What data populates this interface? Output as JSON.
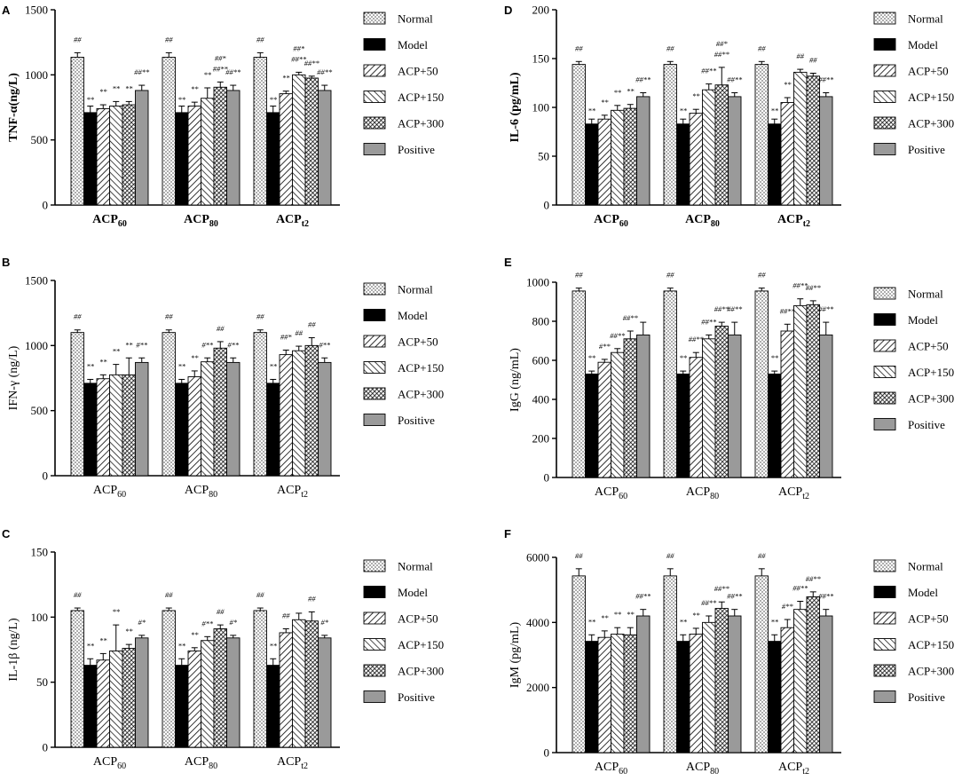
{
  "figure": {
    "series_styles": [
      {
        "name": "Normal",
        "pattern": "dots"
      },
      {
        "name": "Model",
        "pattern": "solid-black"
      },
      {
        "name": "ACP+50",
        "pattern": "diag-right"
      },
      {
        "name": "ACP+150",
        "pattern": "diag-left"
      },
      {
        "name": "ACP+300",
        "pattern": "diag-dense"
      },
      {
        "name": "Positive",
        "pattern": "solid-gray"
      }
    ],
    "colors": {
      "axis": "#000000",
      "model": "#000000",
      "positive": "#9a9a9a",
      "bar_stroke": "#000000"
    }
  },
  "chart_data": [
    {
      "id": "A",
      "panel_letter": "A",
      "type": "bar",
      "ylabel": "TNF-α(ng/L)",
      "ylabel_bold": true,
      "ylim": [
        0,
        1500
      ],
      "yticks": [
        "0",
        "500",
        "1000",
        "1500"
      ],
      "categories": [
        "ACP60",
        "ACP80",
        "ACPt2"
      ],
      "category_labels": [
        {
          "main": "ACP",
          "sub": "60"
        },
        {
          "main": "ACP",
          "sub": "80"
        },
        {
          "main": "ACP",
          "sub": "t2"
        }
      ],
      "category_bold": true,
      "legend": [
        "Normal",
        "Model",
        "ACP+50",
        "ACP+150",
        "ACP+300",
        "Positive"
      ],
      "series": [
        {
          "name": "Normal",
          "values": [
            1135,
            1135,
            1135
          ],
          "errors": [
            35,
            35,
            35
          ],
          "labels": [
            "##",
            "##",
            "##"
          ]
        },
        {
          "name": "Model",
          "values": [
            710,
            710,
            710
          ],
          "errors": [
            50,
            50,
            50
          ],
          "labels": [
            "",
            "",
            ""
          ]
        },
        {
          "name": "ACP+50",
          "values": [
            740,
            760,
            855
          ],
          "errors": [
            30,
            30,
            20
          ],
          "labels": [
            "**",
            "**",
            "**"
          ]
        },
        {
          "name": "ACP+150",
          "values": [
            760,
            820,
            1000
          ],
          "errors": [
            35,
            80,
            20
          ],
          "labels": [
            "**",
            "**",
            "##**"
          ]
        },
        {
          "name": "ACP+300",
          "values": [
            770,
            905,
            975
          ],
          "errors": [
            25,
            40,
            15
          ],
          "labels": [
            "**",
            "##**",
            "##**"
          ]
        },
        {
          "name": "Positive",
          "values": [
            880,
            880,
            880
          ],
          "errors": [
            40,
            40,
            40
          ],
          "labels": [
            "##**",
            "##**",
            "##**"
          ]
        }
      ],
      "extra_labels": [
        {
          "category": 0,
          "series": 1,
          "text": "**"
        },
        {
          "category": 1,
          "series": 1,
          "text": "**"
        },
        {
          "category": 2,
          "series": 1,
          "text": "**"
        },
        {
          "category": 1,
          "series": 4,
          "text": "##*",
          "level": 2
        },
        {
          "category": 2,
          "series": 3,
          "text": "##*",
          "level": 2
        }
      ]
    },
    {
      "id": "B",
      "panel_letter": "B",
      "type": "bar",
      "ylabel": "IFN-γ (ng/L)",
      "ylabel_bold": false,
      "ylim": [
        0,
        1500
      ],
      "yticks": [
        "0",
        "500",
        "1000",
        "1500"
      ],
      "categories": [
        "ACP60",
        "ACP80",
        "ACPt2"
      ],
      "category_labels": [
        {
          "main": "ACP",
          "sub": "60"
        },
        {
          "main": "ACP",
          "sub": "80"
        },
        {
          "main": "ACP",
          "sub": "t2"
        }
      ],
      "category_bold": false,
      "legend": [
        "Normal",
        "Model",
        "ACP+50",
        "ACP+150",
        "ACP+300",
        "Positive"
      ],
      "series": [
        {
          "name": "Normal",
          "values": [
            1100,
            1100,
            1100
          ],
          "errors": [
            20,
            20,
            20
          ],
          "labels": [
            "##",
            "##",
            "##"
          ]
        },
        {
          "name": "Model",
          "values": [
            710,
            710,
            710
          ],
          "errors": [
            30,
            30,
            30
          ],
          "labels": [
            "**",
            "**",
            "**"
          ]
        },
        {
          "name": "ACP+50",
          "values": [
            745,
            760,
            930
          ],
          "errors": [
            30,
            45,
            35
          ],
          "labels": [
            "**",
            "**",
            "##*"
          ]
        },
        {
          "name": "ACP+150",
          "values": [
            775,
            875,
            960
          ],
          "errors": [
            80,
            30,
            35
          ],
          "labels": [
            "**",
            "#**",
            "##"
          ]
        },
        {
          "name": "ACP+300",
          "values": [
            775,
            980,
            1000
          ],
          "errors": [
            130,
            50,
            60
          ],
          "labels": [
            "**",
            "##",
            "##"
          ]
        },
        {
          "name": "Positive",
          "values": [
            870,
            870,
            870
          ],
          "errors": [
            35,
            35,
            35
          ],
          "labels": [
            "#**",
            "#**",
            "#**"
          ]
        }
      ],
      "extra_labels": []
    },
    {
      "id": "C",
      "panel_letter": "C",
      "type": "bar",
      "ylabel": "IL-1β (ng/L)",
      "ylabel_bold": false,
      "ylim": [
        0,
        150
      ],
      "yticks": [
        "0",
        "50",
        "100",
        "150"
      ],
      "categories": [
        "ACP60",
        "ACP80",
        "ACPt2"
      ],
      "category_labels": [
        {
          "main": "ACP",
          "sub": "60"
        },
        {
          "main": "ACP",
          "sub": "80"
        },
        {
          "main": "ACP",
          "sub": "t2"
        }
      ],
      "category_bold": false,
      "legend": [
        "Normal",
        "Model",
        "ACP+50",
        "ACP+150",
        "ACP+300",
        "Positive"
      ],
      "series": [
        {
          "name": "Normal",
          "values": [
            105,
            105,
            105
          ],
          "errors": [
            2,
            2,
            2
          ],
          "labels": [
            "##",
            "##",
            "##"
          ]
        },
        {
          "name": "Model",
          "values": [
            63,
            63,
            63
          ],
          "errors": [
            5,
            5,
            5
          ],
          "labels": [
            "**",
            "**",
            "**"
          ]
        },
        {
          "name": "ACP+50",
          "values": [
            67,
            74,
            88
          ],
          "errors": [
            5,
            2.5,
            3
          ],
          "labels": [
            "**",
            "**",
            "##"
          ]
        },
        {
          "name": "ACP+150",
          "values": [
            74,
            82,
            98
          ],
          "errors": [
            20,
            3,
            5
          ],
          "labels": [
            "**",
            "#**",
            ""
          ]
        },
        {
          "name": "ACP+300",
          "values": [
            76,
            91,
            97
          ],
          "errors": [
            3,
            3,
            7
          ],
          "labels": [
            "**",
            "##",
            "##"
          ]
        },
        {
          "name": "Positive",
          "values": [
            84,
            84,
            84
          ],
          "errors": [
            2,
            2,
            2
          ],
          "labels": [
            "#*",
            "#*",
            "#*"
          ]
        }
      ],
      "extra_labels": []
    },
    {
      "id": "D",
      "panel_letter": "D",
      "type": "bar",
      "ylabel": "IL-6 (pg/mL)",
      "ylabel_bold": true,
      "ylim": [
        0,
        200
      ],
      "yticks": [
        "0",
        "50",
        "100",
        "150",
        "200"
      ],
      "categories": [
        "ACP60",
        "ACP80",
        "ACPt2"
      ],
      "category_labels": [
        {
          "main": "ACP",
          "sub": "60"
        },
        {
          "main": "ACP",
          "sub": "80"
        },
        {
          "main": "ACP",
          "sub": "t2"
        }
      ],
      "category_bold": true,
      "legend": [
        "Normal",
        "Model",
        "ACP+50",
        "ACP+150",
        "ACP+300",
        "Positive"
      ],
      "series": [
        {
          "name": "Normal",
          "values": [
            144,
            144,
            144
          ],
          "errors": [
            3,
            3,
            3
          ],
          "labels": [
            "##",
            "##",
            "##"
          ]
        },
        {
          "name": "Model",
          "values": [
            83,
            83,
            83
          ],
          "errors": [
            5,
            5,
            5
          ],
          "labels": [
            "",
            "",
            ""
          ]
        },
        {
          "name": "ACP+50",
          "values": [
            88,
            94,
            105
          ],
          "errors": [
            4,
            4,
            5
          ],
          "labels": [
            "**",
            "**",
            "**"
          ]
        },
        {
          "name": "ACP+150",
          "values": [
            97,
            118,
            136
          ],
          "errors": [
            5,
            6,
            3
          ],
          "labels": [
            "**",
            "##**",
            "##"
          ]
        },
        {
          "name": "ACP+300",
          "values": [
            99,
            123,
            132
          ],
          "errors": [
            4,
            18,
            3
          ],
          "labels": [
            "**",
            "##**",
            "##"
          ]
        },
        {
          "name": "Positive",
          "values": [
            111,
            111,
            111
          ],
          "errors": [
            4,
            4,
            4
          ],
          "labels": [
            "##**",
            "##**",
            "##**"
          ]
        }
      ],
      "extra_labels": [
        {
          "category": 0,
          "series": 1,
          "text": "**"
        },
        {
          "category": 1,
          "series": 1,
          "text": "**"
        },
        {
          "category": 2,
          "series": 1,
          "text": "**"
        },
        {
          "category": 1,
          "series": 4,
          "text": "##*",
          "level": 2
        }
      ]
    },
    {
      "id": "E",
      "panel_letter": "E",
      "type": "bar",
      "ylabel": "IgG (ng/mL)",
      "ylabel_bold": false,
      "ylim": [
        0,
        1000
      ],
      "yticks": [
        "0",
        "200",
        "400",
        "600",
        "800",
        "1000"
      ],
      "categories": [
        "ACP60",
        "ACP80",
        "ACPt2"
      ],
      "category_labels": [
        {
          "main": "ACP",
          "sub": "60"
        },
        {
          "main": "ACP",
          "sub": "80"
        },
        {
          "main": "ACP",
          "sub": "t2"
        }
      ],
      "category_bold": false,
      "legend": [
        "Normal",
        "Model",
        "ACP+50",
        "ACP+150",
        "ACP+300",
        "Positive"
      ],
      "series": [
        {
          "name": "Normal",
          "values": [
            955,
            955,
            955
          ],
          "errors": [
            15,
            15,
            15
          ],
          "labels": [
            "##",
            "##",
            "##"
          ]
        },
        {
          "name": "Model",
          "values": [
            530,
            530,
            530
          ],
          "errors": [
            15,
            15,
            15
          ],
          "labels": [
            "**",
            "**",
            "**"
          ]
        },
        {
          "name": "ACP+50",
          "values": [
            590,
            615,
            750
          ],
          "errors": [
            15,
            25,
            35
          ],
          "labels": [
            "#**",
            "##**",
            "##**"
          ]
        },
        {
          "name": "ACP+150",
          "values": [
            640,
            710,
            880
          ],
          "errors": [
            20,
            20,
            35
          ],
          "labels": [
            "##**",
            "##**",
            "##**"
          ]
        },
        {
          "name": "ACP+300",
          "values": [
            710,
            775,
            885
          ],
          "errors": [
            40,
            20,
            20
          ],
          "labels": [
            "##**",
            "##**",
            "##**"
          ]
        },
        {
          "name": "Positive",
          "values": [
            730,
            730,
            730
          ],
          "errors": [
            65,
            65,
            65
          ],
          "labels": [
            "",
            "##**",
            "##**"
          ]
        }
      ],
      "extra_labels": []
    },
    {
      "id": "F",
      "panel_letter": "F",
      "type": "bar",
      "ylabel": "IgM (pg/mL)",
      "ylabel_bold": false,
      "ylim": [
        0,
        6000
      ],
      "yticks": [
        "0",
        "2000",
        "4000",
        "6000"
      ],
      "categories": [
        "ACP60",
        "ACP80",
        "ACPt2"
      ],
      "category_labels": [
        {
          "main": "ACP",
          "sub": "60"
        },
        {
          "main": "ACP",
          "sub": "80"
        },
        {
          "main": "ACP",
          "sub": "t2"
        }
      ],
      "category_bold": false,
      "legend": [
        "Normal",
        "Model",
        "ACP+50",
        "ACP+150",
        "ACP+300",
        "Positive"
      ],
      "series": [
        {
          "name": "Normal",
          "values": [
            5430,
            5430,
            5430
          ],
          "errors": [
            220,
            220,
            220
          ],
          "labels": [
            "##",
            "##",
            "##"
          ]
        },
        {
          "name": "Model",
          "values": [
            3420,
            3420,
            3420
          ],
          "errors": [
            200,
            200,
            200
          ],
          "labels": [
            "**",
            "**",
            "**"
          ]
        },
        {
          "name": "ACP+50",
          "values": [
            3540,
            3640,
            3840
          ],
          "errors": [
            200,
            180,
            250
          ],
          "labels": [
            "**",
            "**",
            "#**"
          ]
        },
        {
          "name": "ACP+150",
          "values": [
            3640,
            4000,
            4400
          ],
          "errors": [
            200,
            200,
            250
          ],
          "labels": [
            "**",
            "##**",
            "##**"
          ]
        },
        {
          "name": "ACP+300",
          "values": [
            3620,
            4430,
            4790
          ],
          "errors": [
            220,
            200,
            150
          ],
          "labels": [
            "**",
            "##**",
            "##**"
          ]
        },
        {
          "name": "Positive",
          "values": [
            4200,
            4200,
            4200
          ],
          "errors": [
            200,
            200,
            200
          ],
          "labels": [
            "##**",
            "##**",
            "##**"
          ]
        }
      ],
      "extra_labels": []
    }
  ]
}
